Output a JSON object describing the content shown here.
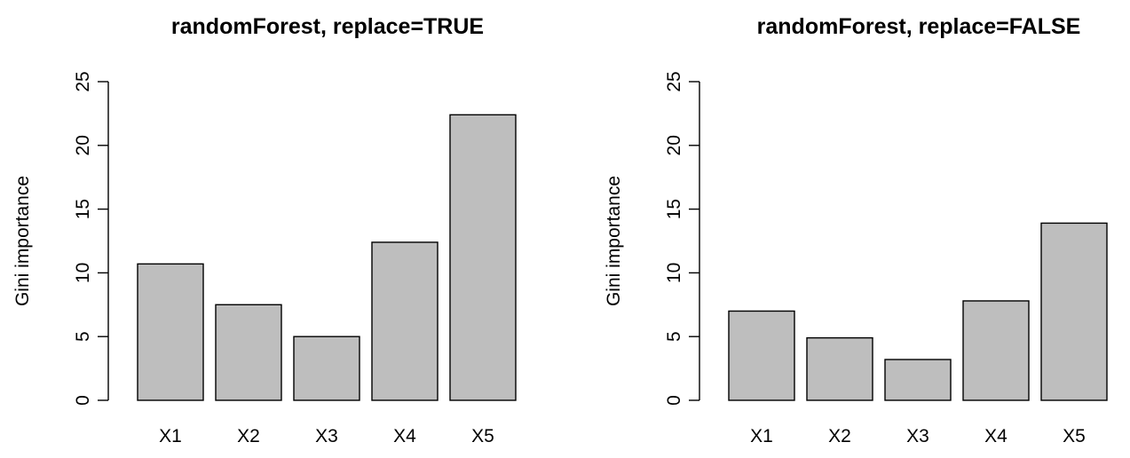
{
  "chart_data": [
    {
      "type": "bar",
      "title": "randomForest, replace=TRUE",
      "xlabel": "",
      "ylabel": "Gini importance",
      "categories": [
        "X1",
        "X2",
        "X3",
        "X4",
        "X5"
      ],
      "values": [
        10.7,
        7.5,
        5.0,
        12.4,
        22.4
      ],
      "ylim": [
        0,
        25
      ],
      "yticks": [
        "0",
        "5",
        "10",
        "15",
        "20",
        "25"
      ],
      "grid": false,
      "bar_color": "#bebebe"
    },
    {
      "type": "bar",
      "title": "randomForest, replace=FALSE",
      "xlabel": "",
      "ylabel": "Gini importance",
      "categories": [
        "X1",
        "X2",
        "X3",
        "X4",
        "X5"
      ],
      "values": [
        7.0,
        4.9,
        3.2,
        7.8,
        13.9
      ],
      "ylim": [
        0,
        25
      ],
      "yticks": [
        "0",
        "5",
        "10",
        "15",
        "20",
        "25"
      ],
      "grid": false,
      "bar_color": "#bebebe"
    }
  ]
}
